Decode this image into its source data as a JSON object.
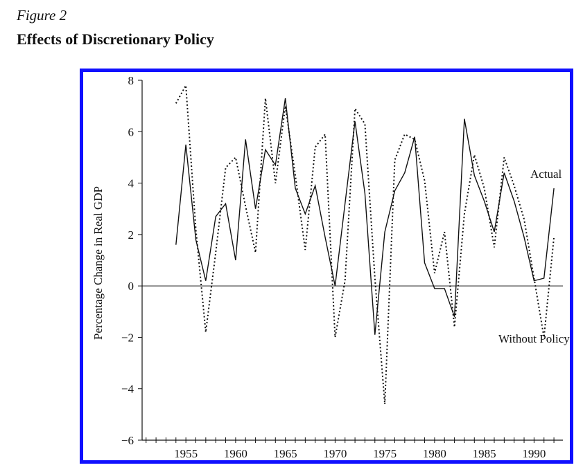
{
  "figure_label": "Figure 2",
  "figure_title": "Effects of Discretionary Policy",
  "colors": {
    "frame": "#1010ff",
    "ink": "#111111"
  },
  "chart_data": {
    "type": "line",
    "title": "Effects of Discretionary Policy",
    "xlabel": "",
    "ylabel": "Percentage Change in Real GDP",
    "xlim": [
      1950.6,
      1992.9
    ],
    "ylim": [
      -6,
      8
    ],
    "xticks": [
      1955,
      1960,
      1965,
      1970,
      1975,
      1980,
      1985,
      1990
    ],
    "xtick_labels": [
      "1955",
      "1960",
      "1965",
      "1970",
      "1975",
      "1980",
      "1985",
      "1990"
    ],
    "yticks": [
      8,
      6,
      4,
      2,
      0,
      -2,
      -4,
      -6
    ],
    "ytick_labels": [
      "8",
      "6",
      "4",
      "2",
      "0",
      "−2",
      "−4",
      "−6"
    ],
    "grid": false,
    "zero_line": true,
    "series": [
      {
        "name": "Actual",
        "style": "solid",
        "x": [
          1954,
          1955,
          1956,
          1957,
          1958,
          1959,
          1960,
          1961,
          1962,
          1963,
          1964,
          1965,
          1966,
          1967,
          1968,
          1969,
          1970,
          1971,
          1972,
          1973,
          1974,
          1975,
          1976,
          1977,
          1978,
          1979,
          1980,
          1981,
          1982,
          1983,
          1984,
          1985,
          1986,
          1987,
          1988,
          1989,
          1990,
          1991,
          1992
        ],
        "values": [
          1.6,
          5.5,
          1.8,
          0.2,
          2.7,
          3.2,
          1.0,
          5.7,
          3.0,
          5.3,
          4.7,
          7.3,
          3.8,
          2.8,
          3.9,
          1.9,
          0.0,
          3.2,
          6.4,
          3.6,
          -1.9,
          2.1,
          3.7,
          4.4,
          5.8,
          0.9,
          -0.1,
          -0.1,
          -1.2,
          6.5,
          4.3,
          3.3,
          2.1,
          4.4,
          3.3,
          1.9,
          0.2,
          0.3,
          3.8
        ]
      },
      {
        "name": "Without Policy",
        "style": "dotted",
        "x": [
          1954,
          1955,
          1956,
          1957,
          1958,
          1959,
          1960,
          1961,
          1962,
          1963,
          1964,
          1965,
          1966,
          1967,
          1968,
          1969,
          1970,
          1971,
          1972,
          1973,
          1974,
          1975,
          1976,
          1977,
          1978,
          1979,
          1980,
          1981,
          1982,
          1983,
          1984,
          1985,
          1986,
          1987,
          1988,
          1989,
          1990,
          1991,
          1992
        ],
        "values": [
          7.1,
          7.8,
          2.2,
          -1.8,
          1.3,
          4.6,
          5.0,
          3.1,
          1.3,
          7.3,
          4.0,
          7.0,
          4.3,
          1.4,
          5.4,
          5.9,
          -2.0,
          0.2,
          6.9,
          6.3,
          0.3,
          -4.6,
          4.9,
          5.9,
          5.7,
          4.1,
          0.5,
          2.1,
          -1.6,
          2.8,
          5.1,
          3.8,
          1.5,
          5.0,
          3.9,
          2.6,
          0.3,
          -2.0,
          1.9
        ]
      }
    ],
    "annotations": [
      {
        "text": "Actual",
        "x": 1991.2,
        "y": 4.2
      },
      {
        "text": "Without Policy",
        "x": 1990.0,
        "y": -2.2
      }
    ]
  }
}
